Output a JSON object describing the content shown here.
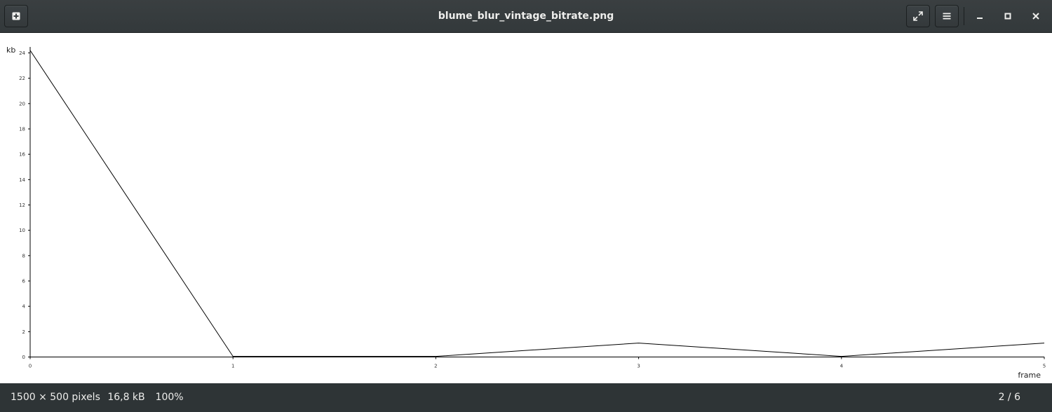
{
  "window": {
    "title": "blume_blur_vintage_bitrate.png"
  },
  "toolbar": {
    "open_icon": "open-file-icon",
    "fullscreen_icon": "fullscreen-icon",
    "menu_icon": "hamburger-menu-icon"
  },
  "window_controls": {
    "minimize_icon": "minimize-icon",
    "maximize_icon": "maximize-icon",
    "close_icon": "close-icon"
  },
  "status": {
    "dimensions": "1500 × 500 pixels",
    "filesize": "16,8 kB",
    "zoom": "100%",
    "position": "2 / 6"
  },
  "chart_data": {
    "type": "line",
    "title": "",
    "xlabel": "frame",
    "ylabel": "kb",
    "x": [
      0,
      1,
      2,
      3,
      4,
      5
    ],
    "values": [
      24.2,
      0.05,
      0.05,
      1.1,
      0.05,
      1.1
    ],
    "xlim": [
      0,
      5
    ],
    "ylim": [
      0,
      24
    ],
    "x_ticks": [
      "0",
      "1",
      "2",
      "3",
      "4",
      "5"
    ],
    "y_ticks": [
      "0",
      "2",
      "4",
      "6",
      "8",
      "10",
      "12",
      "14",
      "16",
      "18",
      "20",
      "22",
      "24"
    ],
    "grid": false,
    "line_color": "#000000"
  }
}
